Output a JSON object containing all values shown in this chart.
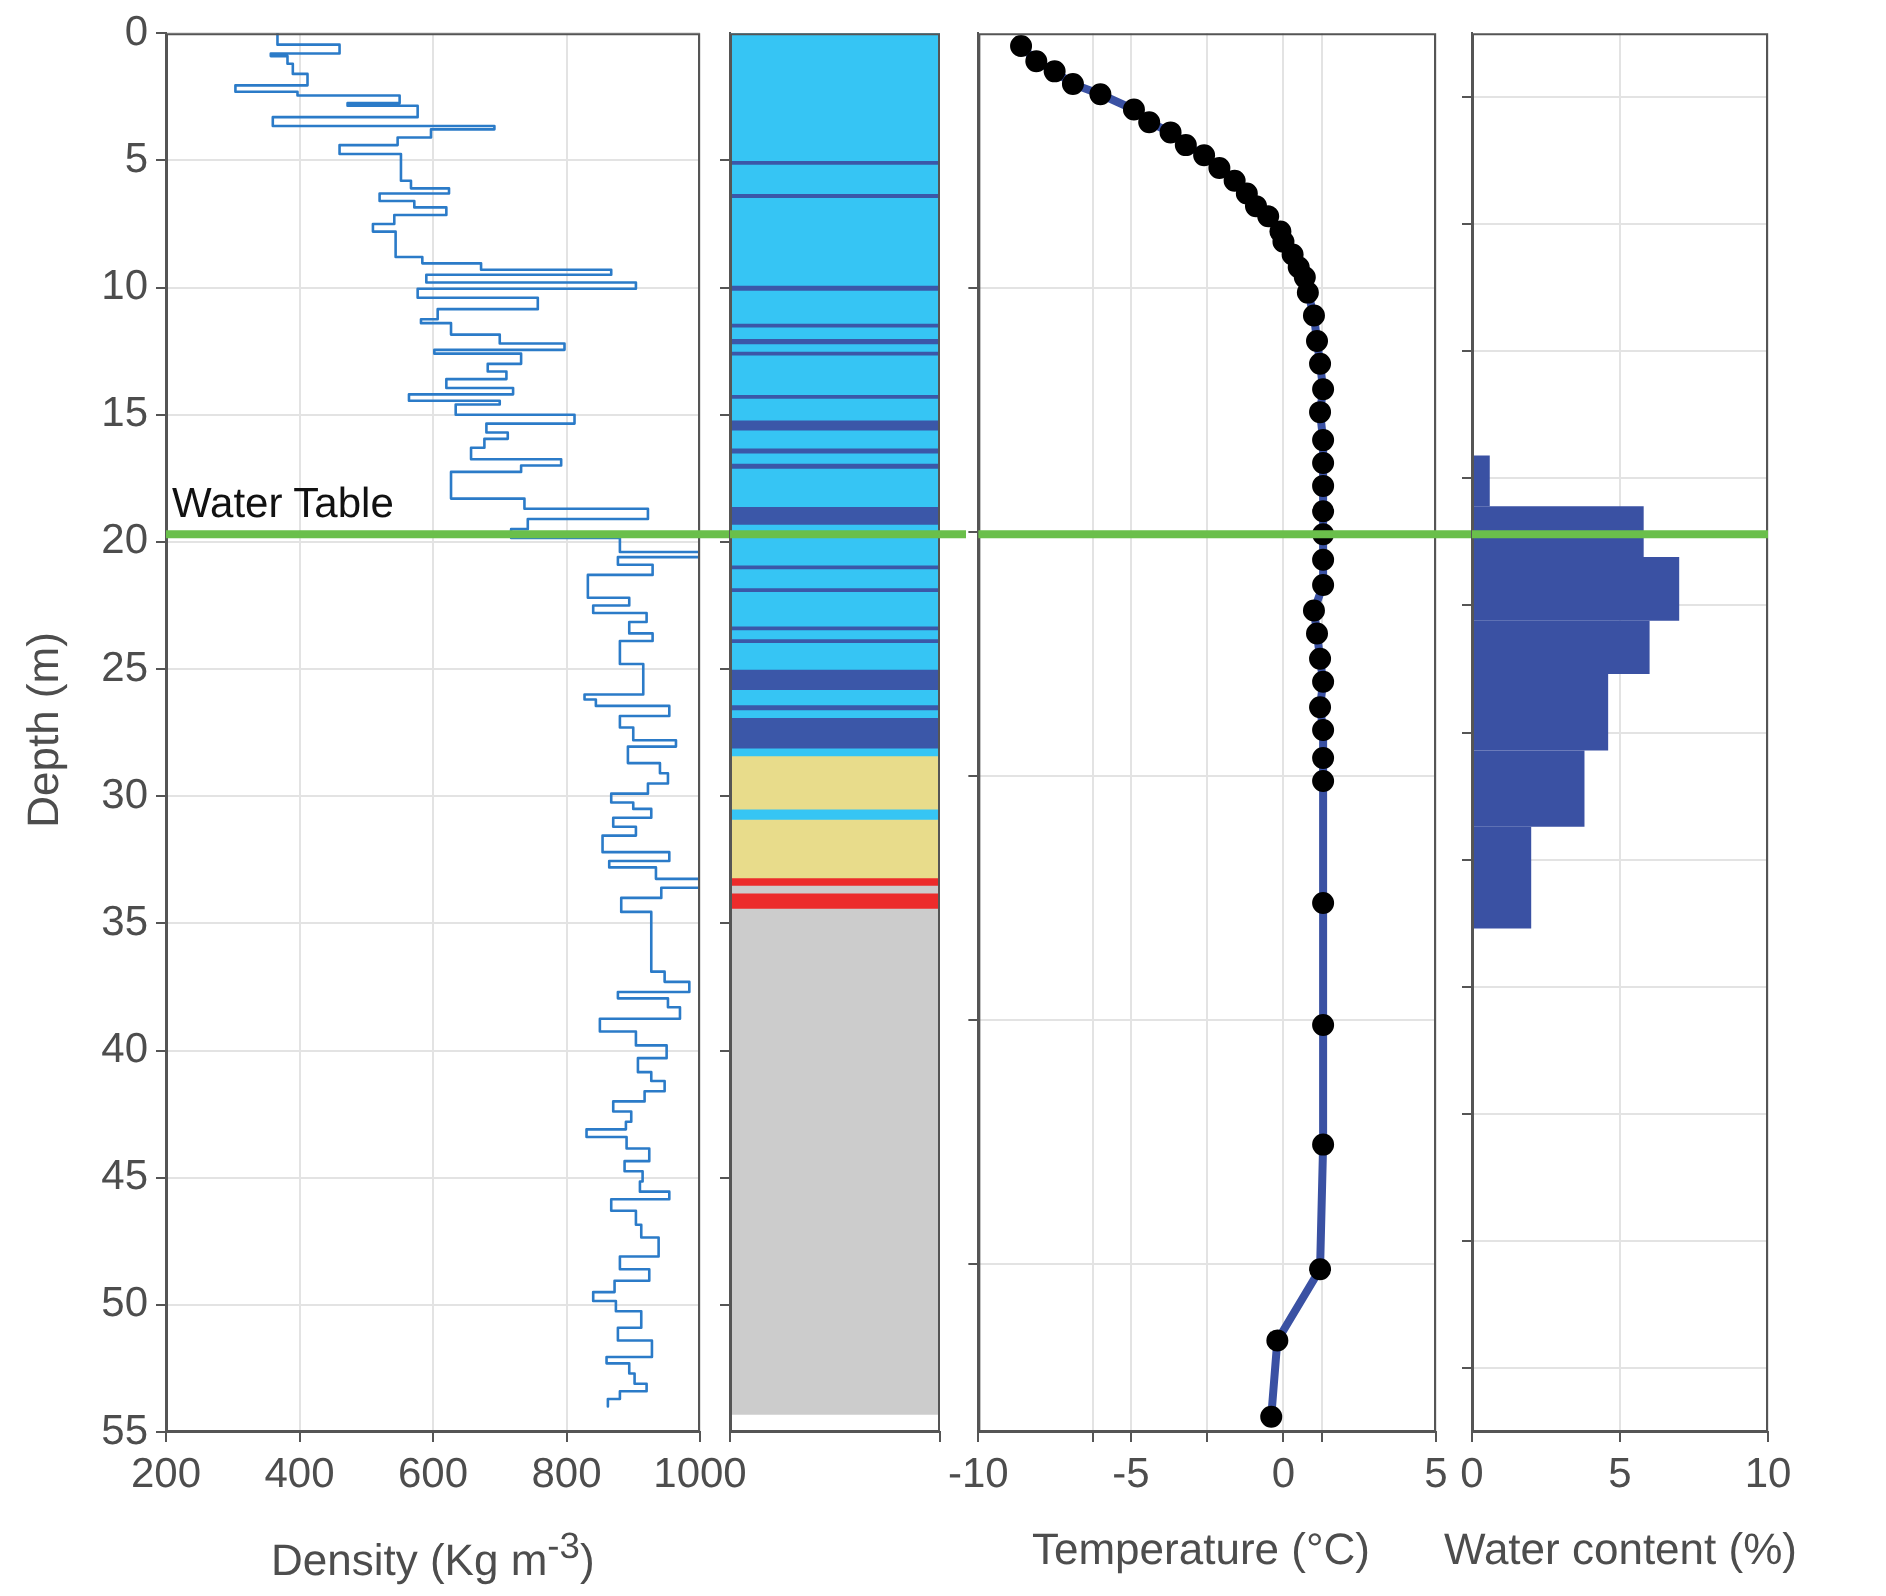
{
  "chart_data": [
    {
      "type": "step",
      "xlabel": "Density (Kg m$^{-3}$)",
      "ylabel": "Depth (m)",
      "color": "#2b7bc8",
      "marker": "none",
      "grid": true,
      "x": [
        367,
        460,
        357,
        382,
        390,
        412,
        304,
        397,
        550,
        472,
        577,
        360,
        692,
        597,
        547,
        460,
        552,
        567,
        624,
        520,
        572,
        620,
        542,
        510,
        544,
        584,
        672,
        867,
        590,
        904,
        577,
        757,
        607,
        582,
        627,
        700,
        797,
        602,
        732,
        682,
        710,
        620,
        720,
        564,
        700,
        634,
        812,
        680,
        712,
        677,
        657,
        792,
        732,
        627,
        737,
        922,
        742,
        717,
        880,
        1000,
        877,
        929,
        832,
        894,
        840,
        920,
        894,
        929,
        880,
        915,
        827,
        844,
        954,
        880,
        900,
        964,
        892,
        940,
        952,
        922,
        867,
        900,
        927,
        870,
        904,
        854,
        954,
        864,
        934,
        1000,
        942,
        882,
        927,
        947,
        984,
        877,
        952,
        970,
        850,
        904,
        950,
        907,
        927,
        947,
        917,
        870,
        897,
        889,
        830,
        890,
        924,
        887,
        914,
        910,
        954,
        867,
        904,
        912,
        938,
        880,
        924,
        872,
        840,
        874,
        912,
        877,
        928,
        860,
        894,
        902,
        920,
        880,
        862,
        862
      ],
      "values": [
        0,
        0.45,
        0.8,
        0.9,
        1.2,
        1.6,
        2.05,
        2.3,
        2.45,
        2.75,
        2.85,
        3.3,
        3.65,
        3.78,
        4.1,
        4.4,
        4.75,
        5.8,
        6.1,
        6.3,
        6.6,
        6.85,
        7.15,
        7.5,
        7.8,
        8.8,
        9.05,
        9.3,
        9.5,
        9.8,
        10.05,
        10.4,
        10.85,
        11.25,
        11.4,
        11.85,
        12.2,
        12.45,
        12.6,
        13.0,
        13.3,
        13.6,
        13.95,
        14.2,
        14.45,
        14.6,
        15.0,
        15.35,
        15.7,
        15.95,
        16.3,
        16.75,
        17.0,
        17.25,
        18.3,
        18.7,
        19.1,
        19.5,
        19.85,
        20.4,
        20.6,
        20.9,
        21.3,
        22.2,
        22.5,
        22.8,
        23.15,
        23.6,
        23.9,
        24.8,
        26.0,
        26.2,
        26.45,
        26.85,
        27.3,
        27.8,
        28.05,
        28.7,
        29.1,
        29.5,
        29.9,
        30.25,
        30.5,
        30.85,
        31.2,
        31.55,
        32.2,
        32.55,
        32.8,
        33.25,
        33.6,
        34.0,
        34.55,
        36.9,
        37.3,
        37.7,
        37.95,
        38.3,
        38.75,
        39.25,
        39.8,
        40.3,
        40.85,
        41.2,
        41.6,
        42.0,
        42.4,
        42.8,
        43.1,
        43.4,
        43.85,
        44.35,
        44.75,
        45.15,
        45.55,
        45.85,
        46.3,
        46.85,
        47.35,
        48.1,
        48.6,
        49.05,
        49.5,
        49.85,
        50.25,
        50.9,
        51.4,
        52.05,
        52.3,
        52.7,
        53.1,
        53.4,
        53.7,
        54.0
      ],
      "xlim": [
        200,
        1000
      ],
      "xticks": [
        200,
        400,
        600,
        800,
        1000
      ],
      "ylim": [
        55,
        0
      ],
      "yticks": [
        0,
        5,
        10,
        15,
        20,
        25,
        30,
        35,
        40,
        45,
        50,
        55
      ],
      "ref_lines": [
        {
          "axis": "y",
          "value": 19.7,
          "label": "Water Table",
          "color": "#6abf4b"
        }
      ]
    },
    {
      "type": "bar",
      "stacked": true,
      "categories": [
        null
      ],
      "grid": false,
      "tick_labels": false,
      "ylim": [
        55,
        0
      ],
      "yticks": [
        {
          "value": 5,
          "label": null
        },
        {
          "value": 10,
          "label": null
        },
        {
          "value": 15,
          "label": null
        },
        {
          "value": 20,
          "label": null
        },
        {
          "value": 25,
          "label": null
        },
        {
          "value": 30,
          "label": null
        },
        {
          "value": 35,
          "label": null
        },
        {
          "value": 40,
          "label": null
        },
        {
          "value": 45,
          "label": null
        },
        {
          "value": 50,
          "label": null
        }
      ],
      "series": [
        {
          "color": "#36c5f4",
          "values": [
            5.0
          ]
        },
        {
          "color": "#3b57a8",
          "values": [
            0.15
          ]
        },
        {
          "color": "#36c5f4",
          "values": [
            1.15
          ]
        },
        {
          "color": "#3b57a8",
          "values": [
            0.15
          ]
        },
        {
          "color": "#36c5f4",
          "values": [
            3.45
          ]
        },
        {
          "color": "#3b57a8",
          "values": [
            0.2
          ]
        },
        {
          "color": "#36c5f4",
          "values": [
            1.3
          ]
        },
        {
          "color": "#3b57a8",
          "values": [
            0.15
          ]
        },
        {
          "color": "#36c5f4",
          "values": [
            0.45
          ]
        },
        {
          "color": "#3b57a8",
          "values": [
            0.2
          ]
        },
        {
          "color": "#36c5f4",
          "values": [
            0.3
          ]
        },
        {
          "color": "#3b57a8",
          "values": [
            0.15
          ]
        },
        {
          "color": "#36c5f4",
          "values": [
            1.55
          ]
        },
        {
          "color": "#3b57a8",
          "values": [
            0.15
          ]
        },
        {
          "color": "#36c5f4",
          "values": [
            0.85
          ]
        },
        {
          "color": "#3b57a8",
          "values": [
            0.4
          ]
        },
        {
          "color": "#36c5f4",
          "values": [
            0.7
          ]
        },
        {
          "color": "#3b57a8",
          "values": [
            0.2
          ]
        },
        {
          "color": "#36c5f4",
          "values": [
            0.4
          ]
        },
        {
          "color": "#3b57a8",
          "values": [
            0.2
          ]
        },
        {
          "color": "#36c5f4",
          "values": [
            1.5
          ]
        },
        {
          "color": "#3b57a8",
          "values": [
            0.7
          ]
        },
        {
          "color": "#36c5f4",
          "values": [
            1.6
          ]
        },
        {
          "color": "#3b57a8",
          "values": [
            0.15
          ]
        },
        {
          "color": "#36c5f4",
          "values": [
            0.75
          ]
        },
        {
          "color": "#3b57a8",
          "values": [
            0.15
          ]
        },
        {
          "color": "#36c5f4",
          "values": [
            1.35
          ]
        },
        {
          "color": "#3b57a8",
          "values": [
            0.15
          ]
        },
        {
          "color": "#36c5f4",
          "values": [
            0.35
          ]
        },
        {
          "color": "#3b57a8",
          "values": [
            0.15
          ]
        },
        {
          "color": "#36c5f4",
          "values": [
            1.05
          ]
        },
        {
          "color": "#3b57a8",
          "values": [
            0.8
          ]
        },
        {
          "color": "#36c5f4",
          "values": [
            0.6
          ]
        },
        {
          "color": "#3b57a8",
          "values": [
            0.2
          ]
        },
        {
          "color": "#36c5f4",
          "values": [
            0.3
          ]
        },
        {
          "color": "#3b57a8",
          "values": [
            1.2
          ]
        },
        {
          "color": "#36c5f4",
          "values": [
            0.3
          ]
        },
        {
          "color": "#e8dc8b",
          "values": [
            2.1
          ]
        },
        {
          "color": "#36c5f4",
          "values": [
            0.4
          ]
        },
        {
          "color": "#e8dc8b",
          "values": [
            2.3
          ]
        },
        {
          "color": "#ec2b2b",
          "values": [
            0.3
          ]
        },
        {
          "color": "#cccccc",
          "values": [
            0.3
          ]
        },
        {
          "color": "#ec2b2b",
          "values": [
            0.6
          ]
        },
        {
          "color": "#cccccc",
          "values": [
            19.9
          ]
        }
      ],
      "ref_lines": [
        {
          "axis": "y",
          "value": 19.7,
          "color": "#6abf4b"
        }
      ]
    },
    {
      "type": "line",
      "xlabel": "Temperature (°C)",
      "color": "#3a51a3",
      "marker": "circle",
      "grid": true,
      "tick_labels": "x",
      "x": [
        -8.6,
        -8.1,
        -7.5,
        -6.9,
        -6.0,
        -4.9,
        -4.4,
        -3.7,
        -3.2,
        -2.6,
        -2.1,
        -1.6,
        -1.2,
        -0.9,
        -0.5,
        -0.1,
        0.0,
        0.3,
        0.5,
        0.7,
        0.8,
        1.0,
        1.1,
        1.2,
        1.3,
        1.2,
        1.3,
        1.3,
        1.3,
        1.3,
        1.3,
        1.3,
        1.3,
        1.0,
        1.1,
        1.2,
        1.3,
        1.2,
        1.3,
        1.3,
        1.3,
        1.3,
        1.3,
        1.3,
        1.2,
        -0.2,
        -0.4
      ],
      "values": [
        0.5,
        1.1,
        1.5,
        2.0,
        2.4,
        3.0,
        3.5,
        3.9,
        4.4,
        4.8,
        5.3,
        5.8,
        6.3,
        6.8,
        7.2,
        7.8,
        8.2,
        8.7,
        9.2,
        9.6,
        10.2,
        11.1,
        12.1,
        13.0,
        14.0,
        14.9,
        16.0,
        16.9,
        17.8,
        18.8,
        19.7,
        20.7,
        21.7,
        22.7,
        23.6,
        24.6,
        25.5,
        26.5,
        27.4,
        28.5,
        29.4,
        34.2,
        39.0,
        43.7,
        48.6,
        51.4,
        54.4
      ],
      "xlim": [
        -10,
        5
      ],
      "xticks": [
        -10,
        {
          "value": -6.25,
          "label": null
        },
        -5,
        {
          "value": -2.5,
          "label": null
        },
        0,
        {
          "value": 1.25,
          "label": null
        },
        5
      ],
      "ylim": [
        55,
        0
      ],
      "yticks": [
        {
          "value": 10,
          "label": null
        },
        {
          "value": 19.6,
          "label": null
        },
        {
          "value": 29.2,
          "label": null
        },
        {
          "value": 38.8,
          "label": null
        },
        {
          "value": 48.4,
          "label": null
        }
      ],
      "ref_lines": [
        {
          "axis": "y",
          "value": 19.7,
          "color": "#6abf4b"
        }
      ]
    },
    {
      "type": "histogram",
      "orientation": "horizontal",
      "xlabel": "Water content (%)",
      "color": "#3a51a3",
      "grid": true,
      "tick_labels": "x",
      "bins": [
        16.6,
        18.6,
        20.6,
        23.1,
        25.2,
        28.2,
        31.2,
        35.2
      ],
      "values": [
        0.6,
        5.8,
        7.0,
        6.0,
        4.6,
        3.8,
        2.0
      ],
      "xlim": [
        0,
        10
      ],
      "xticks": [
        0,
        5,
        10
      ],
      "ylim": [
        55,
        0
      ],
      "yticks": [
        {
          "value": 5,
          "label": null
        },
        {
          "value": 10,
          "label": null
        },
        {
          "value": 15,
          "label": null
        },
        {
          "value": 20,
          "label": null
        },
        {
          "value": 25,
          "label": null
        },
        {
          "value": 30,
          "label": null
        },
        {
          "value": 35,
          "label": null
        },
        {
          "value": 40,
          "label": null
        },
        {
          "value": 45,
          "label": null
        },
        {
          "value": 50,
          "label": null
        }
      ],
      "ref_lines": [
        {
          "axis": "y",
          "value": 19.7,
          "color": "#6abf4b"
        }
      ]
    }
  ]
}
